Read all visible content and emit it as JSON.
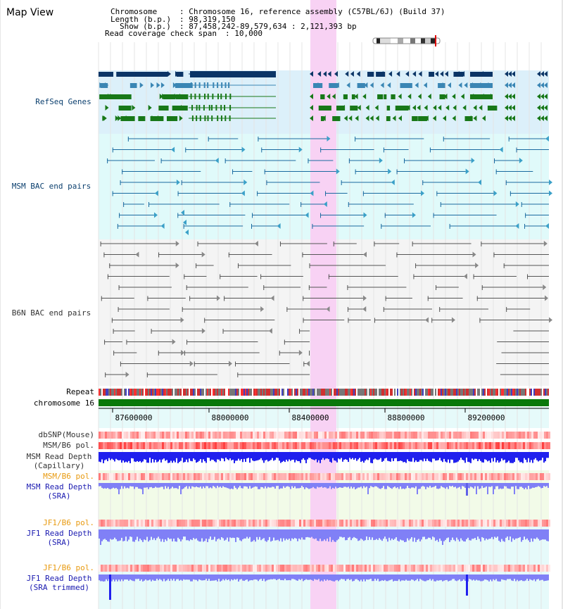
{
  "title": "Map View",
  "info": {
    "chromosome_key": "Chromosome",
    "chromosome_value": ": Chromosome 16, reference assembly (C57BL/6J) (Build 37)",
    "length_key": "Length (b.p.)",
    "length_value": ": 98,319,150",
    "show_key": "Show (b.p.)",
    "show_value": ": 87,458,242-89,579,634 : 2,121,393 bp",
    "coverage_key": "Read coverage check span",
    "coverage_value": ": 10,000"
  },
  "tracks": {
    "refseq": "RefSeq Genes",
    "msm_bac": "MSM BAC end pairs",
    "b6n_bac": "B6N BAC end pairs",
    "repeat": "Repeat",
    "chromosome": "chromosome 16",
    "dbsnp": "dbSNP(Mouse)",
    "msm_b6_pol": "MSM/B6 pol.",
    "msm_depth_cap_1": "MSM Read Depth",
    "msm_depth_cap_2": "(Capillary)",
    "msm_b6_pol_2": "MSM/B6 pol.",
    "msm_depth_sra_1": "MSM Read Depth",
    "msm_depth_sra_2": "(SRA)",
    "jf1_pol": "JF1/B6 pol.",
    "jf1_depth_sra_1": "JF1 Read Depth",
    "jf1_depth_sra_2": "(SRA)",
    "jf1_pol_2": "JF1/B6 pol.",
    "jf1_depth_trim_1": "JF1 Read Depth",
    "jf1_depth_trim_2": "(SRA trimmed)"
  },
  "axis": {
    "ticks": [
      "87600000",
      "88000000",
      "88400000",
      "88800000",
      "89200000"
    ]
  },
  "colors": {
    "refseq_bg": "#dcf0fa",
    "bac_bg": "#e0fafa",
    "b6n_bg": "#f4f4f4",
    "highlight": "#f8d2f4",
    "gene_dark": "#0b3566",
    "gene_mid": "#3a86b4",
    "gene_green": "#187818",
    "chromosome": "#0a780a",
    "msm_label": "#0b3f6e",
    "orange_label": "#e89a10",
    "blue_label": "#1a1ab0",
    "depth_blue": "#2020ee",
    "depth_light": "#8080f6"
  }
}
